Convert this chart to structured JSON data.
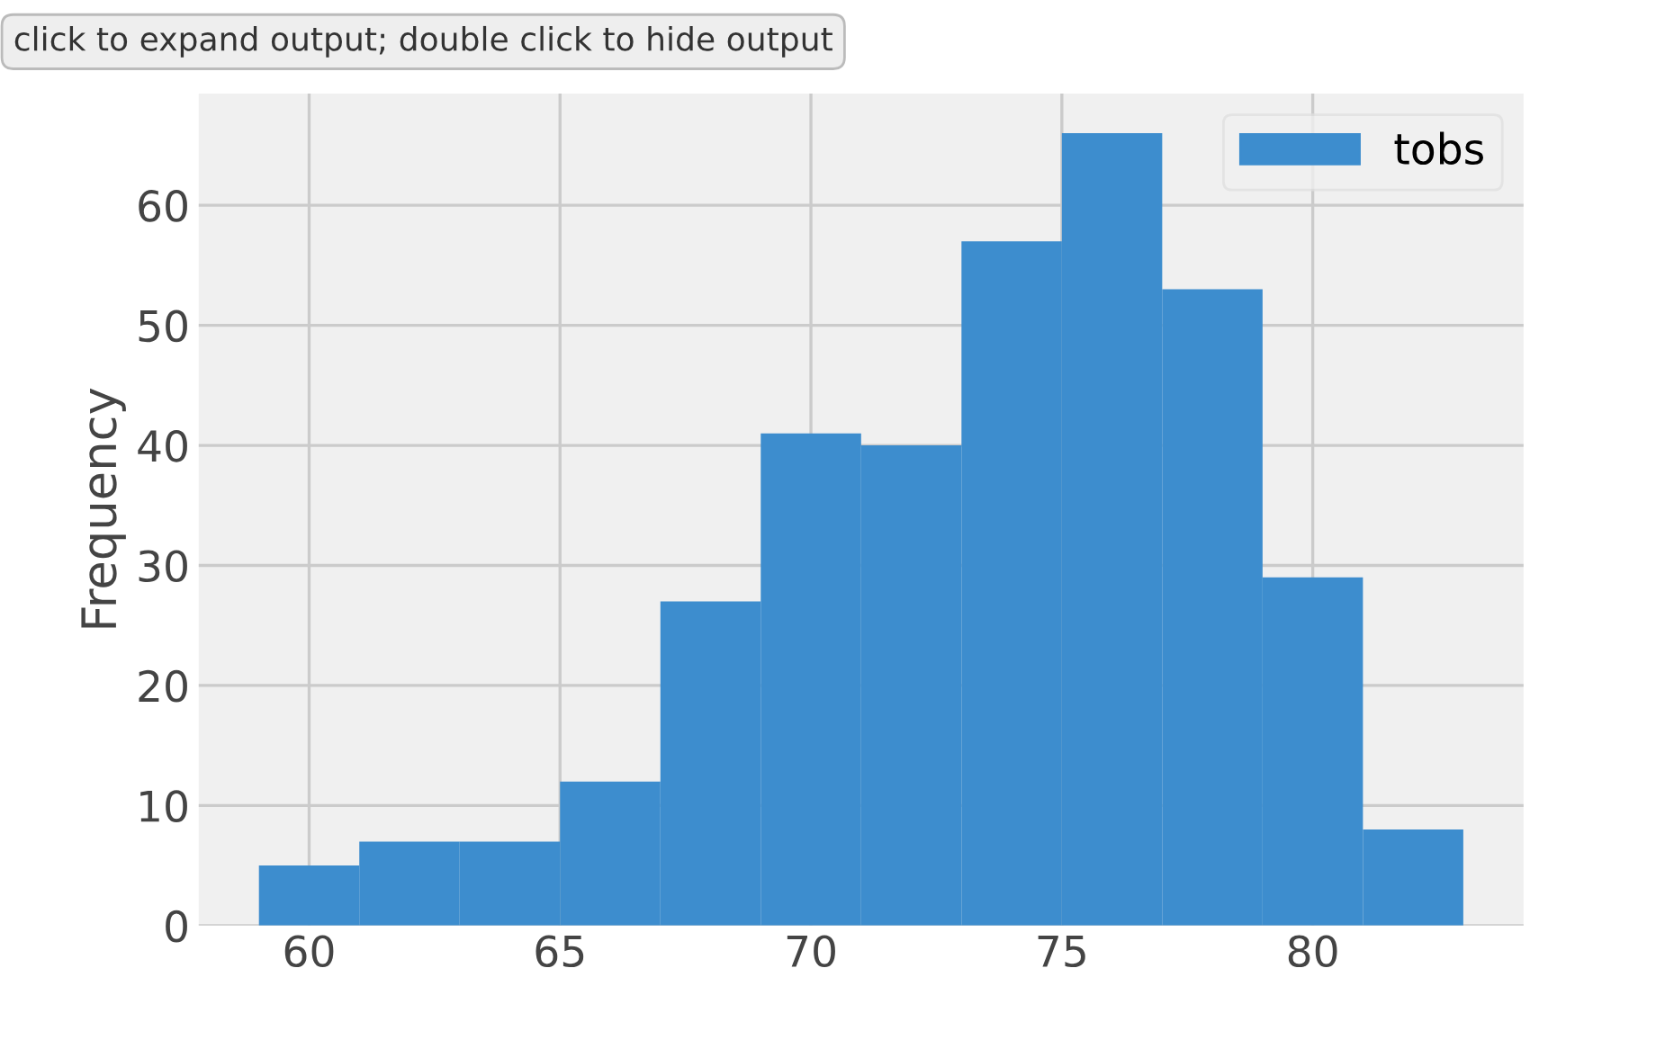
{
  "chart_data": {
    "type": "histogram",
    "ylabel": "Frequency",
    "annotations": [
      "click to expand output; double click to hide output"
    ],
    "bins": [
      59,
      61,
      63,
      65,
      67,
      69,
      71,
      73,
      75,
      77,
      79,
      81,
      83
    ],
    "series": [
      {
        "name": "tobs",
        "color": "#3d8dce",
        "values": [
          5,
          7,
          7,
          12,
          27,
          41,
          40,
          57,
          66,
          53,
          29,
          8
        ]
      }
    ],
    "xlim": [
      57.8,
      84.2
    ],
    "ylim": [
      0,
      69.3
    ],
    "xticks": [
      60,
      65,
      70,
      75,
      80
    ],
    "yticks": [
      0,
      10,
      20,
      30,
      40,
      50,
      60
    ],
    "grid": true,
    "legend": "top right"
  }
}
